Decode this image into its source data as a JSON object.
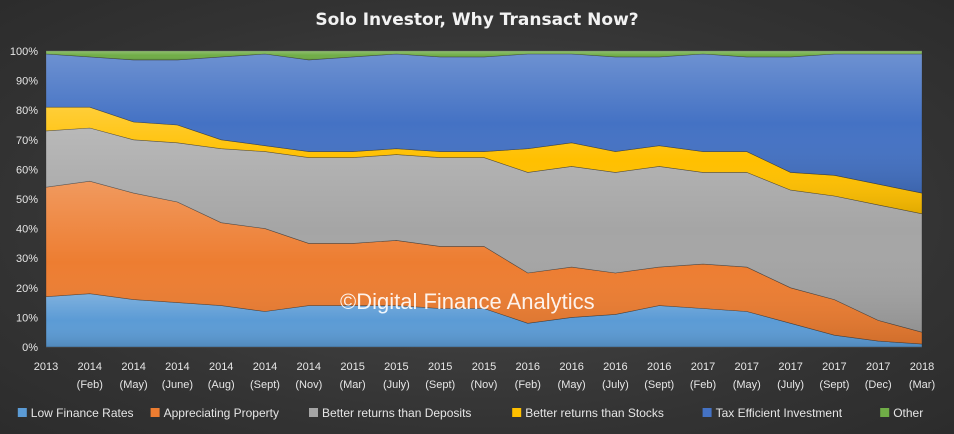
{
  "chart_data": {
    "type": "area",
    "stacked": "percent",
    "title": "Solo Investor, Why Transact Now?",
    "watermark": "©Digital Finance Analytics",
    "x_ticks": [
      [
        "2013",
        ""
      ],
      [
        "2014",
        "(Feb)"
      ],
      [
        "2014",
        "(May)"
      ],
      [
        "2014",
        "(June)"
      ],
      [
        "2014",
        "(Aug)"
      ],
      [
        "2014",
        "(Sept)"
      ],
      [
        "2014",
        "(Nov)"
      ],
      [
        "2015",
        "(Mar)"
      ],
      [
        "2015",
        "(July)"
      ],
      [
        "2015",
        "(Sept)"
      ],
      [
        "2015",
        "(Nov)"
      ],
      [
        "2016",
        "(Feb)"
      ],
      [
        "2016",
        "(May)"
      ],
      [
        "2016",
        "(July)"
      ],
      [
        "2016",
        "(Sept)"
      ],
      [
        "2017",
        "(Feb)"
      ],
      [
        "2017",
        "(May)"
      ],
      [
        "2017",
        "(July)"
      ],
      [
        "2017",
        "(Sept)"
      ],
      [
        "2017",
        "(Dec)"
      ],
      [
        "2018",
        "(Mar)"
      ]
    ],
    "y_ticks": [
      "0%",
      "10%",
      "20%",
      "30%",
      "40%",
      "50%",
      "60%",
      "70%",
      "80%",
      "90%",
      "100%"
    ],
    "ylim": [
      0,
      100
    ],
    "grid": true,
    "legend_position": "bottom",
    "series": [
      {
        "name": "Low Finance Rates",
        "color": "#5b9bd5",
        "values": [
          17,
          18,
          16,
          15,
          14,
          12,
          14,
          14,
          14,
          13,
          13,
          8,
          10,
          11,
          14,
          13,
          12,
          8,
          4,
          2,
          1
        ]
      },
      {
        "name": "Appreciating Property",
        "color": "#ed7d31",
        "values": [
          37,
          38,
          36,
          34,
          28,
          28,
          21,
          21,
          22,
          21,
          21,
          17,
          17,
          14,
          13,
          15,
          15,
          12,
          12,
          7,
          4
        ]
      },
      {
        "name": "Better returns than Deposits",
        "color": "#a5a5a5",
        "values": [
          19,
          18,
          18,
          20,
          25,
          26,
          29,
          29,
          29,
          30,
          30,
          34,
          34,
          34,
          34,
          31,
          32,
          33,
          35,
          39,
          40
        ]
      },
      {
        "name": "Better returns than Stocks",
        "color": "#ffc000",
        "values": [
          8,
          7,
          6,
          6,
          3,
          2,
          2,
          2,
          2,
          2,
          2,
          8,
          8,
          7,
          7,
          7,
          7,
          6,
          7,
          7,
          7
        ]
      },
      {
        "name": "Tax Efficient Investment",
        "color": "#4472c4",
        "values": [
          18,
          17,
          21,
          22,
          28,
          31,
          31,
          32,
          32,
          32,
          32,
          32,
          30,
          32,
          30,
          33,
          32,
          39,
          41,
          44,
          47
        ]
      },
      {
        "name": "Other",
        "color": "#70ad47",
        "values": [
          1,
          2,
          3,
          3,
          2,
          1,
          3,
          2,
          1,
          2,
          2,
          1,
          1,
          2,
          2,
          1,
          2,
          2,
          1,
          1,
          1
        ]
      }
    ]
  }
}
